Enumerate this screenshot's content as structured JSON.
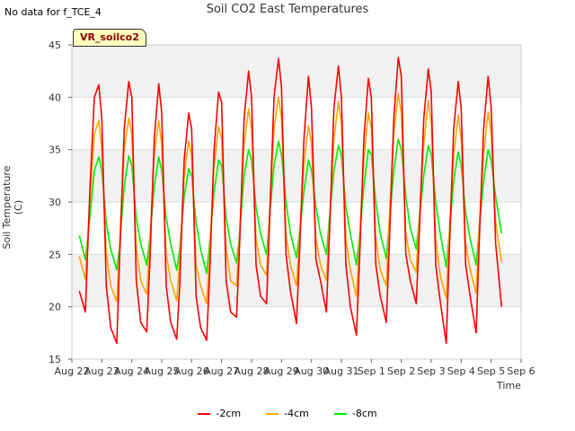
{
  "note": "No data for f_TCE_4",
  "badge": "VR_soilco2",
  "chart_data": {
    "type": "line",
    "title": "Soil CO2 East Temperatures",
    "xlabel": "Time",
    "ylabel": "Soil Temperature (C)",
    "ylim": [
      15,
      45
    ],
    "yticks": [
      15,
      20,
      25,
      30,
      35,
      40,
      45
    ],
    "xlim": [
      0,
      15
    ],
    "xticks": [
      0,
      1,
      2,
      3,
      4,
      5,
      6,
      7,
      8,
      9,
      10,
      11,
      12,
      13,
      14,
      15
    ],
    "xticklabels": [
      "Aug 22",
      "Aug 23",
      "Aug 24",
      "Aug 25",
      "Aug 26",
      "Aug 27",
      "Aug 28",
      "Aug 29",
      "Aug 30",
      "Aug 31",
      "Sep 1",
      "Sep 2",
      "Sep 3",
      "Sep 4",
      "Sep 5",
      "Sep 6"
    ],
    "x_unit": "days since Aug 22",
    "grid": true,
    "legend_position": "bottom",
    "series": [
      {
        "name": "-2cm",
        "color": "#ff0000",
        "x": [
          0.25,
          0.45,
          0.6,
          0.75,
          0.9,
          1.0,
          1.15,
          1.3,
          1.5,
          1.6,
          1.75,
          1.9,
          2.0,
          2.15,
          2.3,
          2.5,
          2.6,
          2.75,
          2.9,
          3.0,
          3.15,
          3.3,
          3.5,
          3.6,
          3.75,
          3.9,
          4.0,
          4.15,
          4.3,
          4.5,
          4.6,
          4.75,
          4.9,
          5.0,
          5.15,
          5.3,
          5.5,
          5.6,
          5.75,
          5.9,
          6.0,
          6.15,
          6.3,
          6.5,
          6.6,
          6.75,
          6.9,
          7.0,
          7.15,
          7.3,
          7.5,
          7.6,
          7.75,
          7.9,
          8.0,
          8.15,
          8.3,
          8.5,
          8.6,
          8.75,
          8.9,
          9.0,
          9.15,
          9.3,
          9.5,
          9.6,
          9.75,
          9.9,
          10.0,
          10.15,
          10.3,
          10.5,
          10.6,
          10.75,
          10.9,
          11.0,
          11.15,
          11.3,
          11.5,
          11.6,
          11.75,
          11.9,
          12.0,
          12.15,
          12.3,
          12.5,
          12.6,
          12.75,
          12.9,
          13.0,
          13.15,
          13.3,
          13.5,
          13.6,
          13.75,
          13.9,
          14.0,
          14.15,
          14.35
        ],
        "y": [
          21.5,
          19.5,
          31.0,
          40.0,
          41.2,
          38.0,
          22.0,
          18.0,
          16.5,
          25.0,
          37.0,
          41.5,
          40.0,
          22.5,
          18.5,
          17.6,
          24.0,
          36.0,
          41.3,
          38.5,
          22.0,
          18.5,
          16.9,
          22.0,
          34.0,
          38.5,
          37.0,
          21.0,
          18.0,
          16.8,
          23.0,
          35.0,
          40.5,
          39.5,
          22.5,
          19.5,
          19.0,
          26.0,
          38.0,
          42.5,
          40.0,
          24.0,
          21.0,
          20.3,
          28.0,
          40.0,
          43.7,
          41.0,
          25.0,
          21.5,
          18.4,
          25.0,
          36.0,
          42.0,
          39.0,
          24.5,
          22.5,
          19.5,
          27.0,
          39.0,
          43.0,
          40.0,
          24.0,
          20.0,
          17.3,
          24.0,
          36.0,
          41.8,
          40.0,
          24.0,
          21.0,
          18.5,
          26.0,
          38.0,
          43.8,
          42.0,
          25.0,
          22.5,
          20.3,
          27.0,
          38.0,
          42.7,
          40.5,
          24.0,
          20.5,
          16.5,
          25.0,
          37.0,
          41.5,
          39.0,
          24.0,
          21.0,
          17.5,
          26.0,
          37.0,
          42.0,
          39.0,
          26.0,
          20.0
        ]
      },
      {
        "name": "-4cm",
        "color": "#ffa500",
        "x": [
          0.25,
          0.45,
          0.6,
          0.75,
          0.9,
          1.0,
          1.15,
          1.3,
          1.5,
          1.6,
          1.75,
          1.9,
          2.0,
          2.15,
          2.3,
          2.5,
          2.6,
          2.75,
          2.9,
          3.0,
          3.15,
          3.3,
          3.5,
          3.6,
          3.75,
          3.9,
          4.0,
          4.15,
          4.3,
          4.5,
          4.6,
          4.75,
          4.9,
          5.0,
          5.15,
          5.3,
          5.5,
          5.6,
          5.75,
          5.9,
          6.0,
          6.15,
          6.3,
          6.5,
          6.6,
          6.75,
          6.9,
          7.0,
          7.15,
          7.3,
          7.5,
          7.6,
          7.75,
          7.9,
          8.0,
          8.15,
          8.3,
          8.5,
          8.6,
          8.75,
          8.9,
          9.0,
          9.15,
          9.3,
          9.5,
          9.6,
          9.75,
          9.9,
          10.0,
          10.15,
          10.3,
          10.5,
          10.6,
          10.75,
          10.9,
          11.0,
          11.15,
          11.3,
          11.5,
          11.6,
          11.75,
          11.9,
          12.0,
          12.15,
          12.3,
          12.5,
          12.6,
          12.75,
          12.9,
          13.0,
          13.15,
          13.3,
          13.5,
          13.6,
          13.75,
          13.9,
          14.0,
          14.15,
          14.35
        ],
        "y": [
          24.8,
          22.6,
          30.0,
          36.5,
          37.8,
          35.0,
          25.0,
          22.0,
          20.5,
          26.0,
          35.0,
          38.0,
          36.5,
          25.5,
          22.5,
          21.2,
          26.0,
          34.5,
          37.8,
          35.5,
          25.0,
          22.5,
          20.6,
          24.5,
          32.5,
          35.8,
          34.5,
          24.0,
          22.0,
          20.3,
          25.0,
          33.5,
          37.2,
          36.0,
          25.5,
          22.5,
          22.0,
          27.0,
          35.5,
          38.9,
          37.0,
          26.5,
          24.0,
          23.0,
          29.0,
          37.0,
          40.0,
          38.0,
          27.0,
          24.0,
          22.0,
          26.5,
          33.5,
          37.3,
          35.5,
          26.5,
          24.0,
          22.5,
          28.0,
          36.0,
          39.6,
          37.5,
          26.5,
          23.5,
          21.0,
          26.0,
          34.0,
          38.5,
          37.0,
          26.5,
          23.5,
          22.0,
          28.5,
          36.5,
          40.3,
          38.5,
          27.0,
          24.5,
          23.3,
          28.5,
          35.5,
          39.7,
          37.5,
          26.5,
          23.0,
          20.8,
          27.0,
          34.5,
          38.3,
          36.0,
          26.0,
          23.5,
          21.3,
          27.5,
          34.5,
          38.6,
          36.5,
          28.0,
          24.3
        ]
      },
      {
        "name": "-8cm",
        "color": "#00ee00",
        "x": [
          0.25,
          0.45,
          0.6,
          0.75,
          0.9,
          1.0,
          1.15,
          1.3,
          1.5,
          1.6,
          1.75,
          1.9,
          2.0,
          2.15,
          2.3,
          2.5,
          2.6,
          2.75,
          2.9,
          3.0,
          3.15,
          3.3,
          3.5,
          3.6,
          3.75,
          3.9,
          4.0,
          4.15,
          4.3,
          4.5,
          4.6,
          4.75,
          4.9,
          5.0,
          5.15,
          5.3,
          5.5,
          5.6,
          5.75,
          5.9,
          6.0,
          6.15,
          6.3,
          6.5,
          6.6,
          6.75,
          6.9,
          7.0,
          7.15,
          7.3,
          7.5,
          7.6,
          7.75,
          7.9,
          8.0,
          8.15,
          8.3,
          8.5,
          8.6,
          8.75,
          8.9,
          9.0,
          9.15,
          9.3,
          9.5,
          9.6,
          9.75,
          9.9,
          10.0,
          10.15,
          10.3,
          10.5,
          10.6,
          10.75,
          10.9,
          11.0,
          11.15,
          11.3,
          11.5,
          11.6,
          11.75,
          11.9,
          12.0,
          12.15,
          12.3,
          12.5,
          12.6,
          12.75,
          12.9,
          13.0,
          13.15,
          13.3,
          13.5,
          13.6,
          13.75,
          13.9,
          14.0,
          14.15,
          14.35
        ],
        "y": [
          26.8,
          24.5,
          28.5,
          33.0,
          34.3,
          33.0,
          28.0,
          25.5,
          23.5,
          26.0,
          31.5,
          34.4,
          33.5,
          28.5,
          26.0,
          24.0,
          26.5,
          31.5,
          34.3,
          33.0,
          28.5,
          26.0,
          23.5,
          25.5,
          30.5,
          33.2,
          32.5,
          28.0,
          25.5,
          23.2,
          26.0,
          31.0,
          34.0,
          33.5,
          28.5,
          26.0,
          24.2,
          27.0,
          32.5,
          35.0,
          34.0,
          29.5,
          27.0,
          25.0,
          28.5,
          33.5,
          35.8,
          34.5,
          30.0,
          27.0,
          24.7,
          27.0,
          31.0,
          34.0,
          33.0,
          29.5,
          27.0,
          25.0,
          28.5,
          33.0,
          35.4,
          34.5,
          29.5,
          27.0,
          24.0,
          26.5,
          31.5,
          35.0,
          34.5,
          30.0,
          27.0,
          24.6,
          28.0,
          33.0,
          36.0,
          35.0,
          30.5,
          27.5,
          25.5,
          28.5,
          32.5,
          35.4,
          34.5,
          30.0,
          27.0,
          23.8,
          27.0,
          32.0,
          34.8,
          33.5,
          29.0,
          26.5,
          24.0,
          27.5,
          32.0,
          35.0,
          34.0,
          30.5,
          27.0
        ]
      }
    ]
  }
}
